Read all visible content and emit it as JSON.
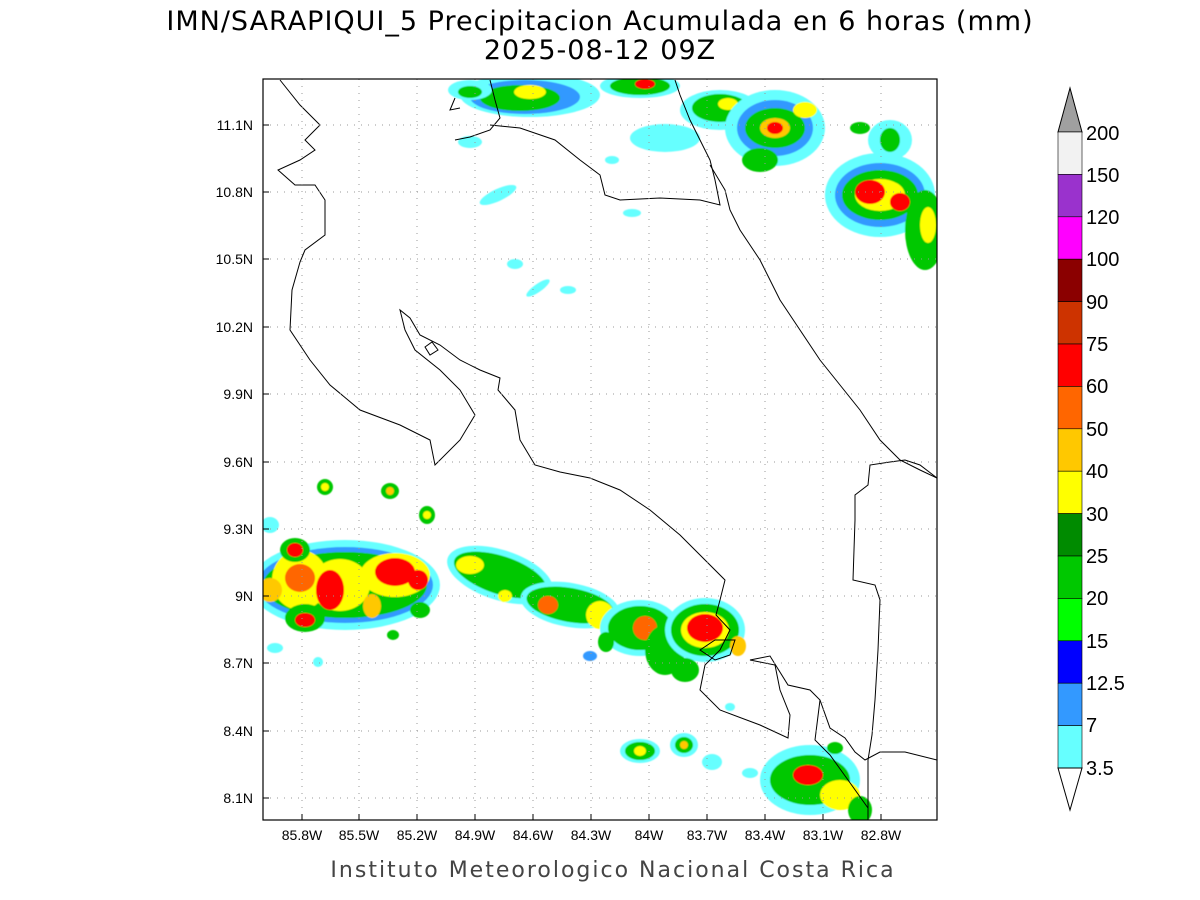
{
  "title": {
    "line1": "IMN/SARAPIQUI_5 Precipitacion Acumulada en 6 horas (mm)",
    "line2": "2025-08-12 09Z"
  },
  "footer": "Instituto Meteorologico Nacional Costa Rica",
  "axes": {
    "x_ticks": [
      "85.8W",
      "85.5W",
      "85.2W",
      "84.9W",
      "84.6W",
      "84.3W",
      "84W",
      "83.7W",
      "83.4W",
      "83.1W",
      "82.8W"
    ],
    "y_ticks": [
      "11.1N",
      "10.8N",
      "10.5N",
      "10.2N",
      "9.9N",
      "9.6N",
      "9.3N",
      "9N",
      "8.7N",
      "8.4N",
      "8.1N"
    ]
  },
  "colorbar": {
    "labels": [
      "200",
      "150",
      "120",
      "100",
      "90",
      "75",
      "60",
      "50",
      "40",
      "30",
      "25",
      "20",
      "15",
      "12.5",
      "7",
      "3.5"
    ],
    "colors_top_to_bottom": [
      "#f2f2f2",
      "#9a32cd",
      "#ff00ff",
      "#8b0000",
      "#cd3300",
      "#ff0000",
      "#ff6600",
      "#ffc800",
      "#ffff00",
      "#008b00",
      "#00c800",
      "#00ff00",
      "#0000ff",
      "#3399ff",
      "#66ffff"
    ],
    "over_color": "#a0a0a0",
    "under_color": "#ffffff"
  }
}
